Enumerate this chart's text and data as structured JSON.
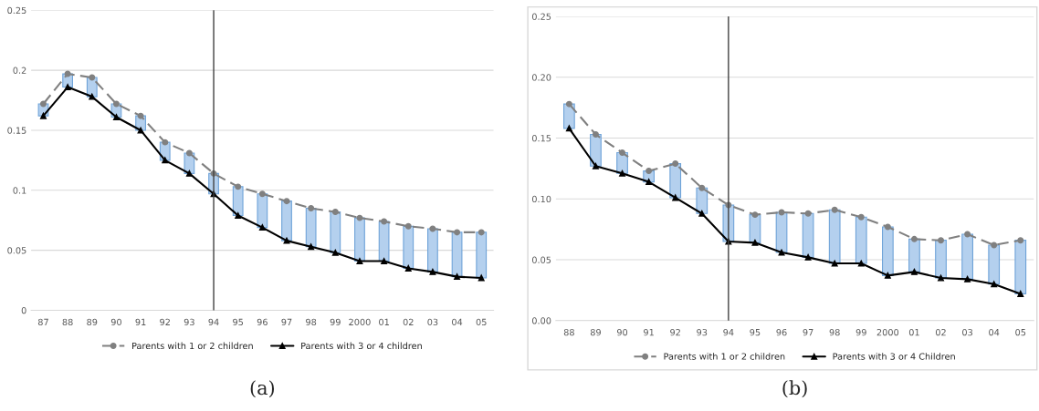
{
  "chart_data": [
    {
      "type": "line",
      "categories": [
        "87",
        "88",
        "89",
        "90",
        "91",
        "92",
        "93",
        "94",
        "95",
        "96",
        "97",
        "98",
        "99",
        "2000",
        "01",
        "02",
        "03",
        "04",
        "05"
      ],
      "series": [
        {
          "type": "bar",
          "color": "#b4d0ee",
          "base": [
            0.162,
            0.186,
            0.178,
            0.161,
            0.15,
            0.125,
            0.114,
            0.097,
            0.079,
            0.069,
            0.058,
            0.053,
            0.048,
            0.041,
            0.041,
            0.035,
            0.032,
            0.028,
            0.027
          ],
          "values": [
            0.01,
            0.011,
            0.016,
            0.011,
            0.012,
            0.015,
            0.017,
            0.017,
            0.024,
            0.028,
            0.033,
            0.032,
            0.034,
            0.036,
            0.033,
            0.035,
            0.036,
            0.037,
            0.038
          ]
        },
        {
          "name": "Parents with 1 or 2 children",
          "color": "#808080",
          "marker": "circle",
          "line_style": "dashed",
          "values": [
            0.172,
            0.197,
            0.194,
            0.172,
            0.162,
            0.14,
            0.131,
            0.114,
            0.103,
            0.097,
            0.091,
            0.085,
            0.082,
            0.077,
            0.074,
            0.07,
            0.068,
            0.065,
            0.065
          ]
        },
        {
          "name": "Parents with 3 or 4 children",
          "color": "#000000",
          "marker": "triangle",
          "line_style": "solid",
          "values": [
            0.162,
            0.186,
            0.178,
            0.161,
            0.15,
            0.125,
            0.114,
            0.097,
            0.079,
            0.069,
            0.058,
            0.053,
            0.048,
            0.041,
            0.041,
            0.035,
            0.032,
            0.028,
            0.027
          ]
        }
      ],
      "ylim": [
        0,
        0.25
      ],
      "yticks": [
        0,
        0.05,
        0.1,
        0.15,
        0.2,
        0.25
      ],
      "grid": "y",
      "legend": "bottom",
      "ref_lines": [
        {
          "axis": "x",
          "value": "94",
          "color": "#404040"
        }
      ],
      "annotations": [
        "(a)"
      ]
    },
    {
      "type": "line",
      "categories": [
        "88",
        "89",
        "90",
        "91",
        "92",
        "93",
        "94",
        "95",
        "96",
        "97",
        "98",
        "99",
        "2000",
        "01",
        "02",
        "03",
        "04",
        "05"
      ],
      "series": [
        {
          "type": "bar",
          "color": "#b4d0ee",
          "base": [
            0.158,
            0.127,
            0.121,
            0.114,
            0.101,
            0.088,
            0.065,
            0.064,
            0.056,
            0.052,
            0.047,
            0.047,
            0.037,
            0.04,
            0.035,
            0.034,
            0.03,
            0.022
          ],
          "values": [
            0.02,
            0.026,
            0.017,
            0.009,
            0.028,
            0.021,
            0.03,
            0.023,
            0.033,
            0.036,
            0.044,
            0.038,
            0.04,
            0.027,
            0.031,
            0.037,
            0.032,
            0.044
          ]
        },
        {
          "name": "Parents with 1 or 2 children",
          "color": "#808080",
          "marker": "circle",
          "line_style": "dashed",
          "values": [
            0.178,
            0.153,
            0.138,
            0.123,
            0.129,
            0.109,
            0.095,
            0.087,
            0.089,
            0.088,
            0.091,
            0.085,
            0.077,
            0.067,
            0.066,
            0.071,
            0.062,
            0.066
          ]
        },
        {
          "name": "Parents with 3 or 4 Children",
          "color": "#000000",
          "marker": "triangle",
          "line_style": "solid",
          "values": [
            0.158,
            0.127,
            0.121,
            0.114,
            0.101,
            0.088,
            0.065,
            0.064,
            0.056,
            0.052,
            0.047,
            0.047,
            0.037,
            0.04,
            0.035,
            0.034,
            0.03,
            0.022
          ]
        }
      ],
      "ylim": [
        0,
        0.25
      ],
      "yticks": [
        {
          "value": 0,
          "label": "0.00"
        },
        {
          "value": 0.05,
          "label": "0.05"
        },
        {
          "value": 0.1,
          "label": "0.10"
        },
        {
          "value": 0.15,
          "label": "0.15"
        },
        {
          "value": 0.2,
          "label": "0.20"
        },
        {
          "value": 0.25,
          "label": "0.25"
        }
      ],
      "grid": "y",
      "legend": "bottom",
      "ref_lines": [
        {
          "axis": "x",
          "value": "94",
          "color": "#404040"
        }
      ],
      "annotations": [
        "(b)"
      ]
    }
  ]
}
